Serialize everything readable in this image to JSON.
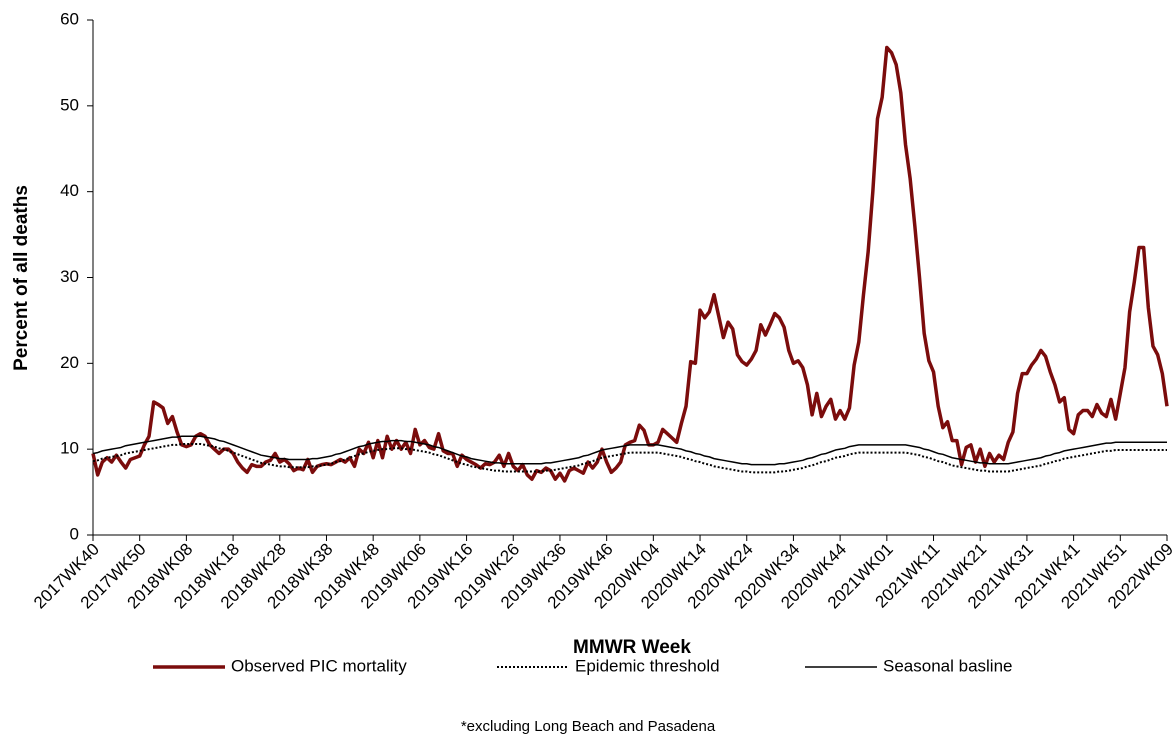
{
  "chart_data": {
    "type": "line",
    "y_label": "Percent of all deaths",
    "x_label": "MMWR Week",
    "footnote": "*excluding Long Beach and Pasadena",
    "ylim": [
      0,
      60
    ],
    "yticks": [
      0,
      10,
      20,
      30,
      40,
      50,
      60
    ],
    "grid": false,
    "categories": [
      "2017WK40",
      null,
      null,
      null,
      null,
      null,
      null,
      null,
      null,
      null,
      "2017WK50",
      null,
      null,
      null,
      null,
      null,
      null,
      null,
      null,
      null,
      "2018WK08",
      null,
      null,
      null,
      null,
      null,
      null,
      null,
      null,
      null,
      "2018WK18",
      null,
      null,
      null,
      null,
      null,
      null,
      null,
      null,
      null,
      "2018WK28",
      null,
      null,
      null,
      null,
      null,
      null,
      null,
      null,
      null,
      "2018WK38",
      null,
      null,
      null,
      null,
      null,
      null,
      null,
      null,
      null,
      "2018WK48",
      null,
      null,
      null,
      null,
      null,
      null,
      null,
      null,
      null,
      "2019WK06",
      null,
      null,
      null,
      null,
      null,
      null,
      null,
      null,
      null,
      "2019WK16",
      null,
      null,
      null,
      null,
      null,
      null,
      null,
      null,
      null,
      "2019WK26",
      null,
      null,
      null,
      null,
      null,
      null,
      null,
      null,
      null,
      "2019WK36",
      null,
      null,
      null,
      null,
      null,
      null,
      null,
      null,
      null,
      "2019WK46",
      null,
      null,
      null,
      null,
      null,
      null,
      null,
      null,
      null,
      "2020WK04",
      null,
      null,
      null,
      null,
      null,
      null,
      null,
      null,
      null,
      "2020WK14",
      null,
      null,
      null,
      null,
      null,
      null,
      null,
      null,
      null,
      "2020WK24",
      null,
      null,
      null,
      null,
      null,
      null,
      null,
      null,
      null,
      "2020WK34",
      null,
      null,
      null,
      null,
      null,
      null,
      null,
      null,
      null,
      "2020WK44",
      null,
      null,
      null,
      null,
      null,
      null,
      null,
      null,
      null,
      "2021WK01",
      null,
      null,
      null,
      null,
      null,
      null,
      null,
      null,
      null,
      "2021WK11",
      null,
      null,
      null,
      null,
      null,
      null,
      null,
      null,
      null,
      "2021WK21",
      null,
      null,
      null,
      null,
      null,
      null,
      null,
      null,
      null,
      "2021WK31",
      null,
      null,
      null,
      null,
      null,
      null,
      null,
      null,
      null,
      "2021WK41",
      null,
      null,
      null,
      null,
      null,
      null,
      null,
      null,
      null,
      "2021WK51",
      null,
      null,
      null,
      null,
      null,
      null,
      null,
      null,
      null,
      "2022WK09"
    ],
    "series": [
      {
        "name": "Observed PIC mortality",
        "color": "#7b0c0c",
        "line_style": "solid",
        "line_width": 3.5,
        "values": [
          9.5,
          7,
          8.5,
          9,
          8.5,
          9.3,
          8.5,
          7.8,
          8.8,
          9,
          9.2,
          10.5,
          11.5,
          15.5,
          15.2,
          14.8,
          13,
          13.8,
          12,
          10.5,
          10.3,
          10.5,
          11.5,
          11.8,
          11.5,
          10.5,
          10,
          9.5,
          10,
          10,
          9.5,
          8.5,
          7.8,
          7.3,
          8.2,
          8,
          8,
          8.5,
          8.7,
          9.5,
          8.5,
          8.8,
          8.3,
          7.5,
          7.8,
          7.6,
          8.8,
          7.3,
          8,
          8.2,
          8.3,
          8.2,
          8.5,
          8.8,
          8.5,
          9,
          8,
          10,
          9.5,
          10.8,
          9,
          11,
          9,
          11.5,
          10,
          11,
          10,
          10.8,
          9.5,
          12.3,
          10.5,
          11,
          10.2,
          10,
          11.8,
          9.8,
          9.5,
          9.5,
          8,
          9.3,
          8.8,
          8.5,
          8.2,
          7.8,
          8.3,
          8.2,
          8.5,
          9.3,
          8,
          9.5,
          8,
          7.5,
          8.2,
          7,
          6.5,
          7.5,
          7.3,
          7.8,
          7.5,
          6.5,
          7.2,
          6.3,
          7.5,
          7.8,
          7.5,
          7.2,
          8.5,
          7.8,
          8.5,
          10,
          8.5,
          7.3,
          7.8,
          8.5,
          10.5,
          10.8,
          11,
          12.8,
          12.2,
          10.5,
          10.5,
          10.8,
          12.3,
          11.8,
          11.3,
          10.8,
          13,
          15,
          20.2,
          20,
          26.2,
          25.3,
          26,
          28,
          25.5,
          23,
          24.8,
          24,
          21,
          20.2,
          19.8,
          20.5,
          21.5,
          24.5,
          23.3,
          24.5,
          25.8,
          25.3,
          24.2,
          21.5,
          20,
          20.3,
          19.5,
          17.5,
          14,
          16.5,
          13.8,
          15,
          15.8,
          13.5,
          14.5,
          13.5,
          14.8,
          19.8,
          22.5,
          28,
          33,
          40,
          48.5,
          51,
          56.8,
          56.2,
          54.8,
          51.5,
          45.5,
          41.5,
          36,
          30,
          23.5,
          20.3,
          19,
          15,
          12.5,
          13.2,
          11,
          11,
          8.2,
          10.2,
          10.5,
          8.5,
          10,
          8,
          9.5,
          8.5,
          9.3,
          8.8,
          10.8,
          12,
          16.5,
          18.8,
          18.8,
          19.8,
          20.5,
          21.5,
          20.8,
          19,
          17.5,
          15.5,
          16,
          12.3,
          11.8,
          14,
          14.5,
          14.5,
          13.8,
          15.2,
          14.2,
          13.8,
          15.8,
          13.5,
          16.5,
          19.5,
          26,
          29.5,
          33.5,
          33.5,
          26.5,
          22,
          21,
          18.8,
          15
        ]
      },
      {
        "name": "Epidemic threshold",
        "color": "#000000",
        "line_style": "dotted",
        "line_width": 2,
        "values": [
          8.6,
          8.7,
          8.9,
          9.0,
          9.1,
          9.2,
          9.3,
          9.5,
          9.6,
          9.7,
          9.8,
          9.9,
          10.0,
          10.1,
          10.2,
          10.3,
          10.4,
          10.5,
          10.5,
          10.6,
          10.6,
          10.6,
          10.6,
          10.6,
          10.5,
          10.4,
          10.3,
          10.1,
          10.0,
          9.8,
          9.6,
          9.4,
          9.2,
          9.0,
          8.8,
          8.6,
          8.4,
          8.3,
          8.2,
          8.1,
          8.0,
          8.0,
          7.9,
          7.9,
          7.9,
          7.9,
          7.9,
          8.0,
          8.0,
          8.1,
          8.2,
          8.3,
          8.5,
          8.6,
          8.8,
          9.0,
          9.2,
          9.4,
          9.5,
          9.7,
          9.8,
          9.9,
          10.0,
          10.0,
          10.1,
          10.1,
          10.1,
          10.0,
          10.0,
          9.9,
          9.8,
          9.7,
          9.6,
          9.4,
          9.3,
          9.1,
          8.9,
          8.7,
          8.5,
          8.3,
          8.2,
          8.0,
          7.9,
          7.8,
          7.7,
          7.6,
          7.5,
          7.5,
          7.4,
          7.4,
          7.4,
          7.4,
          7.4,
          7.4,
          7.4,
          7.4,
          7.4,
          7.5,
          7.5,
          7.6,
          7.7,
          7.8,
          7.9,
          8.0,
          8.1,
          8.3,
          8.4,
          8.6,
          8.8,
          9.0,
          9.1,
          9.2,
          9.3,
          9.4,
          9.5,
          9.6,
          9.6,
          9.6,
          9.6,
          9.6,
          9.6,
          9.6,
          9.5,
          9.4,
          9.3,
          9.2,
          9.1,
          8.9,
          8.8,
          8.6,
          8.5,
          8.3,
          8.2,
          8.0,
          7.9,
          7.8,
          7.7,
          7.6,
          7.5,
          7.4,
          7.4,
          7.3,
          7.3,
          7.3,
          7.3,
          7.3,
          7.3,
          7.4,
          7.4,
          7.5,
          7.6,
          7.7,
          7.8,
          8.0,
          8.1,
          8.3,
          8.5,
          8.6,
          8.8,
          9.0,
          9.1,
          9.2,
          9.4,
          9.5,
          9.6,
          9.6,
          9.6,
          9.6,
          9.6,
          9.6,
          9.6,
          9.6,
          9.6,
          9.6,
          9.6,
          9.5,
          9.4,
          9.3,
          9.1,
          9.0,
          8.8,
          8.6,
          8.5,
          8.3,
          8.1,
          8.0,
          7.9,
          7.8,
          7.7,
          7.6,
          7.5,
          7.5,
          7.4,
          7.4,
          7.4,
          7.4,
          7.4,
          7.5,
          7.6,
          7.7,
          7.8,
          7.9,
          8.0,
          8.1,
          8.3,
          8.4,
          8.6,
          8.7,
          8.9,
          9.0,
          9.1,
          9.2,
          9.3,
          9.4,
          9.5,
          9.6,
          9.7,
          9.8,
          9.8,
          9.9,
          9.9,
          9.9,
          9.9,
          9.9,
          9.9,
          9.9,
          9.9,
          9.9,
          9.9,
          9.9,
          9.9
        ]
      },
      {
        "name": "Seasonal basline",
        "color": "#000000",
        "line_style": "solid",
        "line_width": 1.5,
        "values": [
          9.5,
          9.6,
          9.8,
          9.9,
          10.0,
          10.1,
          10.2,
          10.4,
          10.5,
          10.6,
          10.7,
          10.8,
          10.9,
          11.0,
          11.1,
          11.2,
          11.3,
          11.4,
          11.4,
          11.5,
          11.5,
          11.5,
          11.5,
          11.5,
          11.4,
          11.3,
          11.2,
          11.0,
          10.9,
          10.7,
          10.5,
          10.3,
          10.1,
          9.9,
          9.7,
          9.5,
          9.3,
          9.2,
          9.1,
          9.0,
          8.9,
          8.9,
          8.8,
          8.8,
          8.8,
          8.8,
          8.8,
          8.9,
          8.9,
          9.0,
          9.1,
          9.2,
          9.4,
          9.5,
          9.7,
          9.9,
          10.1,
          10.3,
          10.4,
          10.6,
          10.7,
          10.8,
          10.9,
          10.9,
          11.0,
          11.0,
          11.0,
          10.9,
          10.9,
          10.8,
          10.7,
          10.6,
          10.5,
          10.3,
          10.2,
          10.0,
          9.8,
          9.6,
          9.4,
          9.2,
          9.1,
          8.9,
          8.8,
          8.7,
          8.6,
          8.5,
          8.4,
          8.4,
          8.3,
          8.3,
          8.3,
          8.3,
          8.3,
          8.3,
          8.3,
          8.3,
          8.3,
          8.4,
          8.4,
          8.5,
          8.6,
          8.7,
          8.8,
          8.9,
          9.0,
          9.2,
          9.3,
          9.5,
          9.7,
          9.9,
          10.0,
          10.1,
          10.2,
          10.3,
          10.4,
          10.5,
          10.5,
          10.5,
          10.5,
          10.5,
          10.5,
          10.5,
          10.4,
          10.3,
          10.2,
          10.1,
          10.0,
          9.8,
          9.7,
          9.5,
          9.4,
          9.2,
          9.1,
          8.9,
          8.8,
          8.7,
          8.6,
          8.5,
          8.4,
          8.3,
          8.3,
          8.2,
          8.2,
          8.2,
          8.2,
          8.2,
          8.2,
          8.3,
          8.3,
          8.4,
          8.5,
          8.6,
          8.7,
          8.9,
          9.0,
          9.2,
          9.4,
          9.5,
          9.7,
          9.9,
          10.0,
          10.1,
          10.3,
          10.4,
          10.5,
          10.5,
          10.5,
          10.5,
          10.5,
          10.5,
          10.5,
          10.5,
          10.5,
          10.5,
          10.5,
          10.4,
          10.3,
          10.2,
          10.0,
          9.9,
          9.7,
          9.5,
          9.4,
          9.2,
          9.0,
          8.9,
          8.8,
          8.7,
          8.6,
          8.5,
          8.4,
          8.4,
          8.3,
          8.3,
          8.3,
          8.3,
          8.3,
          8.4,
          8.5,
          8.6,
          8.7,
          8.8,
          8.9,
          9.0,
          9.2,
          9.3,
          9.5,
          9.6,
          9.8,
          9.9,
          10.0,
          10.1,
          10.2,
          10.3,
          10.4,
          10.5,
          10.6,
          10.7,
          10.7,
          10.8,
          10.8,
          10.8,
          10.8,
          10.8,
          10.8,
          10.8,
          10.8,
          10.8,
          10.8,
          10.8,
          10.8
        ]
      }
    ]
  }
}
